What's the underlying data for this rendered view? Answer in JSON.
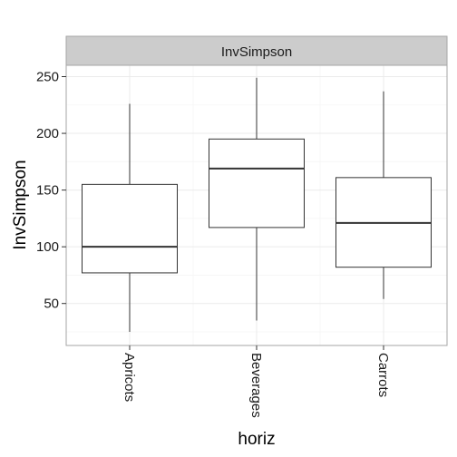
{
  "chart_data": {
    "type": "boxplot",
    "facet_label": "InvSimpson",
    "xlabel": "horiz",
    "ylabel": "InvSimpson",
    "ylim": [
      13,
      260
    ],
    "yticks": [
      50,
      100,
      150,
      200,
      250
    ],
    "categories": [
      "Apricots",
      "Beverages",
      "Carrots"
    ],
    "boxes": [
      {
        "category": "Apricots",
        "whisker_low": 25,
        "q1": 77,
        "median": 100,
        "q3": 155,
        "whisker_high": 226
      },
      {
        "category": "Beverages",
        "whisker_low": 35,
        "q1": 117,
        "median": 169,
        "q3": 195,
        "whisker_high": 249
      },
      {
        "category": "Carrots",
        "whisker_low": 54,
        "q1": 82,
        "median": 121,
        "q3": 161,
        "whisker_high": 237
      }
    ],
    "grid": true,
    "colors": {
      "strip_fill": "#cccccc",
      "panel_border": "#a6a6a6",
      "box_stroke": "#333333",
      "grid_major": "#ebebeb",
      "grid_minor": "#f5f5f5"
    }
  }
}
